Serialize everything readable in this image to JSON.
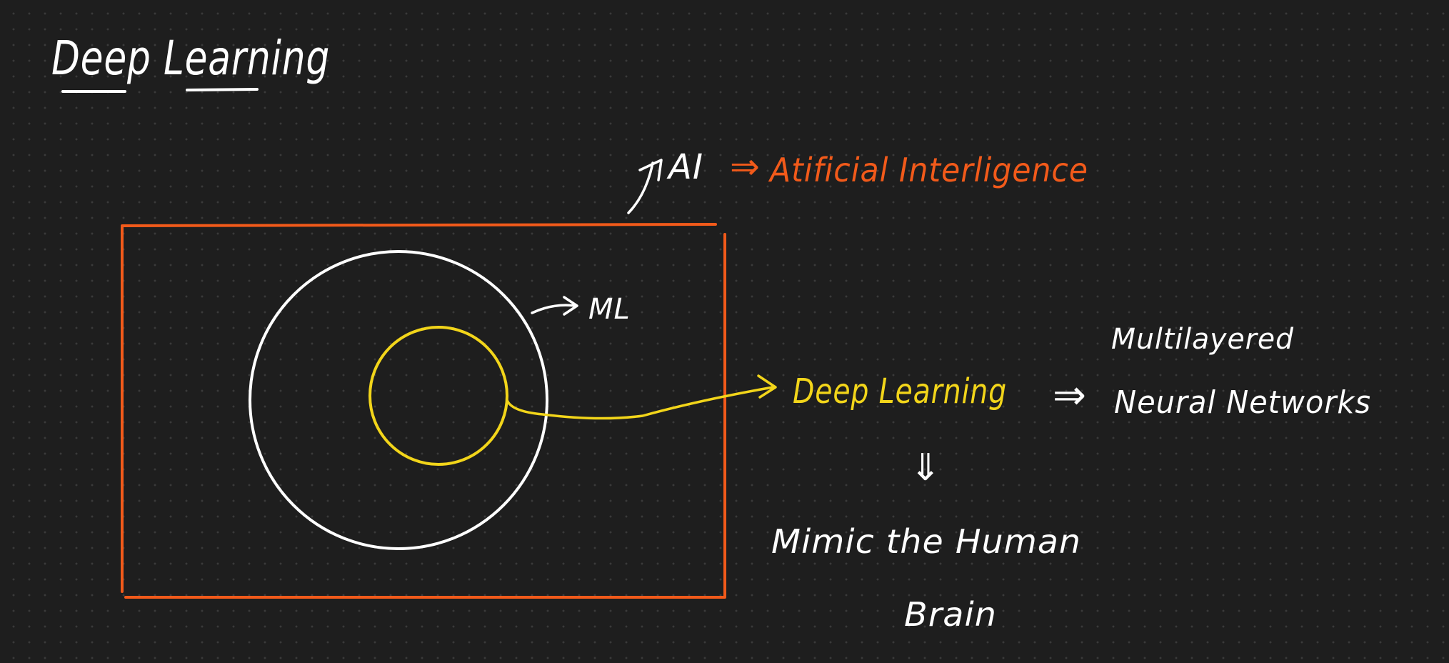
{
  "title": "Deep Learning",
  "colors": {
    "background": "#1e1e1e",
    "white": "#ffffff",
    "orange": "#f25a1a",
    "yellow": "#f2d51a"
  },
  "ai_label": "AI",
  "ai_expansion": "Atificial Interligence",
  "implies_symbol": "⇒",
  "down_implies_symbol": "⇓",
  "ml_label": "ML",
  "dl_label": "Deep Learning",
  "nn_line1": "Multilayered",
  "nn_line2": "Neural Networks",
  "mimic_line1": "Mimic the Human",
  "mimic_line2": "Brain"
}
